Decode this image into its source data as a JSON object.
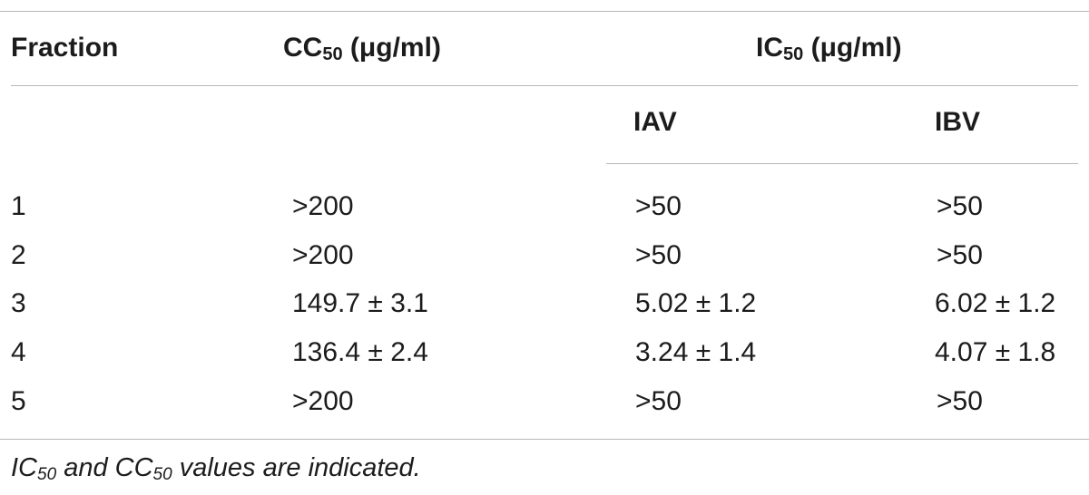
{
  "table": {
    "headers": {
      "fraction": "Fraction",
      "cc50_prefix": "CC",
      "cc50_sub": "50",
      "cc50_unit": " (μg/ml)",
      "ic50_prefix": "IC",
      "ic50_sub": "50",
      "ic50_unit": " (μg/ml)",
      "iav": "IAV",
      "ibv": "IBV"
    },
    "rows": [
      {
        "fraction": "1",
        "cc50": ">200",
        "iav": ">50",
        "ibv": ">50"
      },
      {
        "fraction": "2",
        "cc50": ">200",
        "iav": ">50",
        "ibv": ">50"
      },
      {
        "fraction": "3",
        "cc50": "149.7 ± 3.1",
        "iav": "5.02 ± 1.2",
        "ibv": "6.02 ± 1.2"
      },
      {
        "fraction": "4",
        "cc50": "136.4 ± 2.4",
        "iav": "3.24 ± 1.4",
        "ibv": "4.07 ± 1.8"
      },
      {
        "fraction": "5",
        "cc50": ">200",
        "iav": ">50",
        "ibv": ">50"
      }
    ]
  },
  "footnote": {
    "ic": "IC",
    "ic_sub": "50",
    "and": " and ",
    "cc": "CC",
    "cc_sub": "50",
    "rest": " values are indicated."
  }
}
